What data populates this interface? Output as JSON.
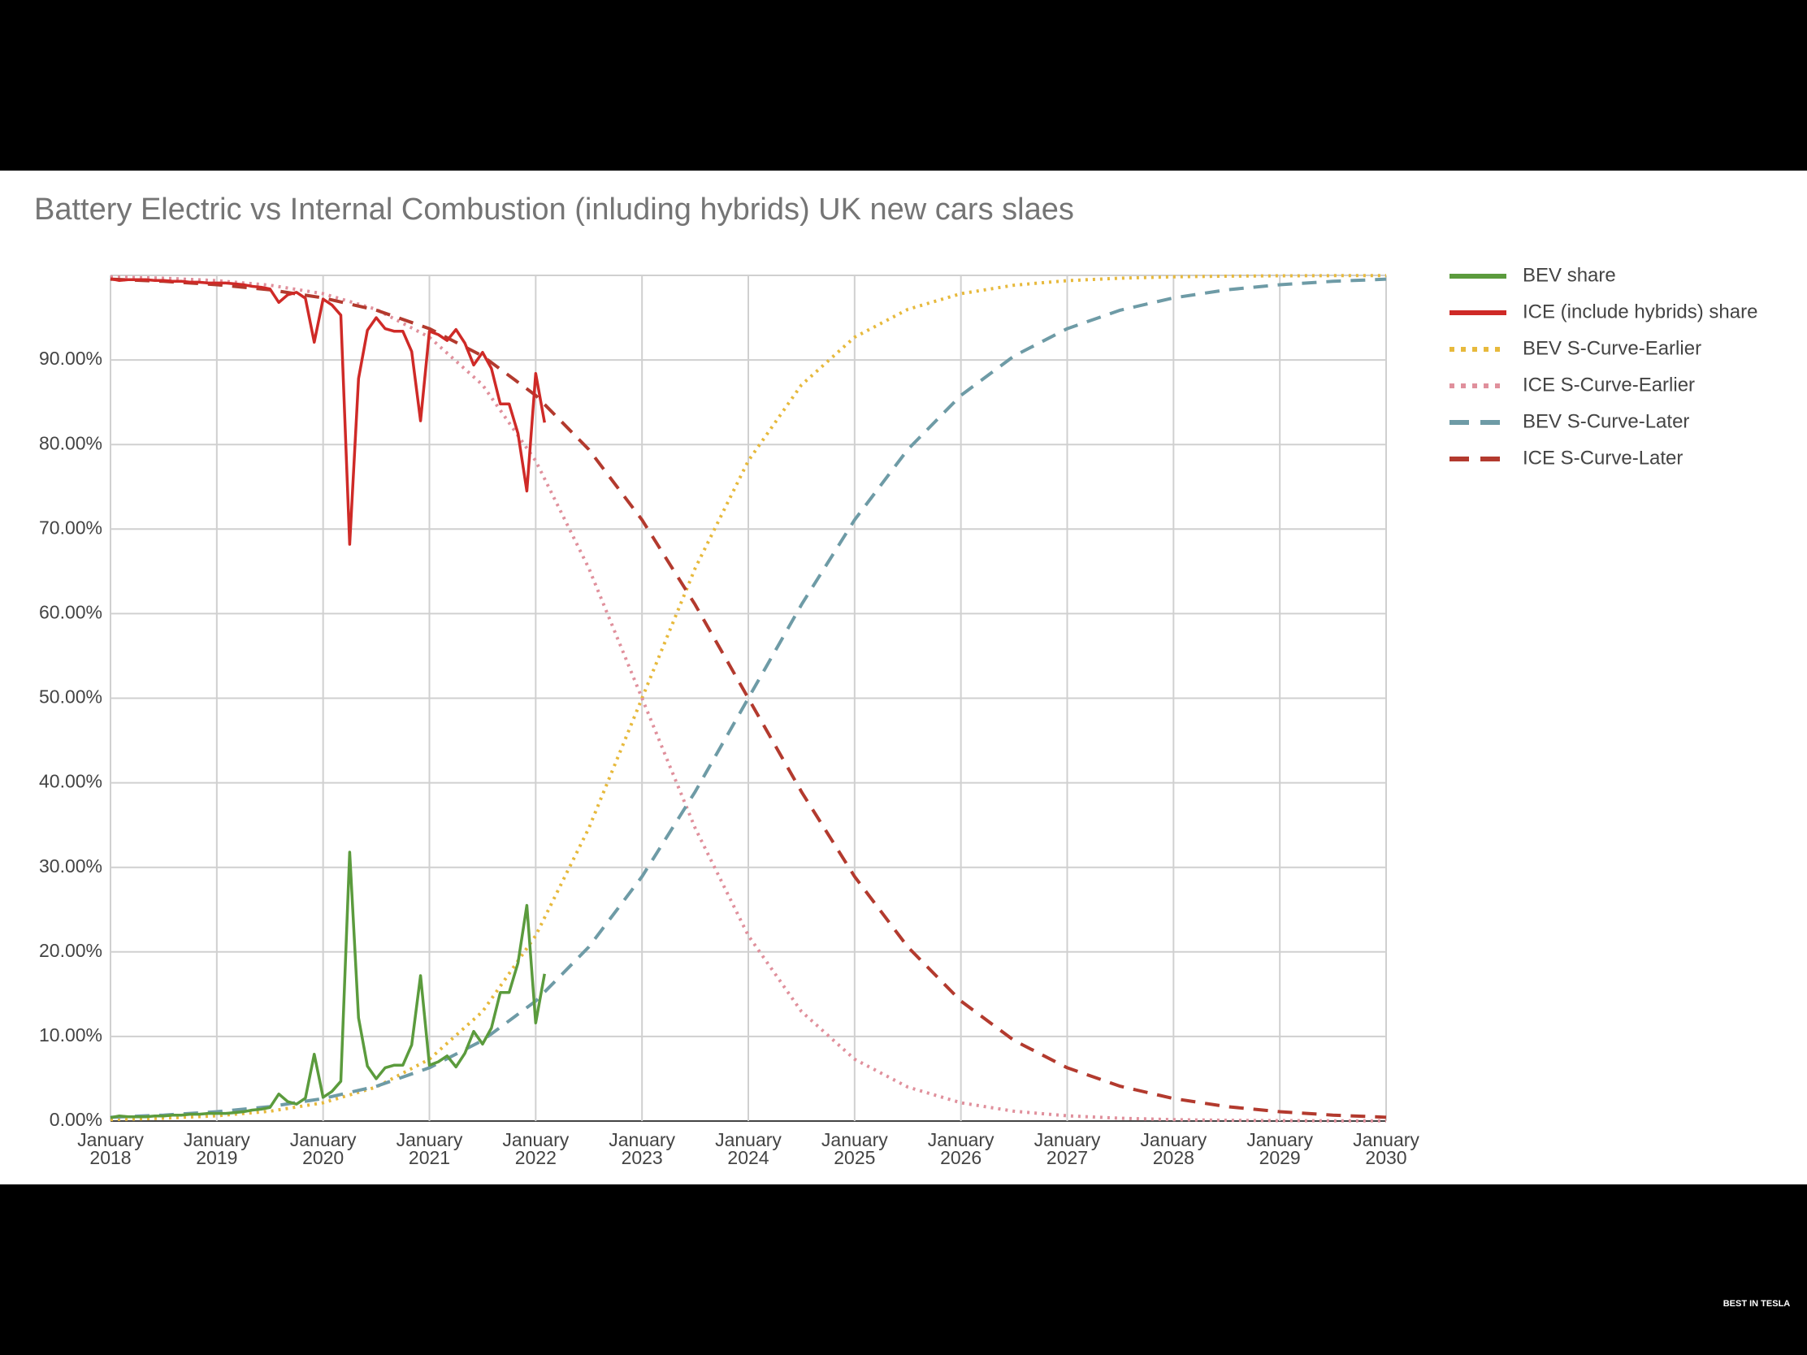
{
  "chart_data": {
    "type": "line",
    "title": "Battery Electric vs Internal Combustion (inluding hybrids) UK new cars slaes",
    "watermark": "BEST IN TESLA",
    "xlim": [
      "2018-01",
      "2030-01"
    ],
    "xticks": [
      {
        "value": "2018-01",
        "label": "January 2018"
      },
      {
        "value": "2019-01",
        "label": "January 2019"
      },
      {
        "value": "2020-01",
        "label": "January 2020"
      },
      {
        "value": "2021-01",
        "label": "January 2021"
      },
      {
        "value": "2022-01",
        "label": "January 2022"
      },
      {
        "value": "2023-01",
        "label": "January 2023"
      },
      {
        "value": "2024-01",
        "label": "January 2024"
      },
      {
        "value": "2025-01",
        "label": "January 2025"
      },
      {
        "value": "2026-01",
        "label": "January 2026"
      },
      {
        "value": "2027-01",
        "label": "January 2027"
      },
      {
        "value": "2028-01",
        "label": "January 2028"
      },
      {
        "value": "2029-01",
        "label": "January 2029"
      },
      {
        "value": "2030-01",
        "label": "January 2030"
      }
    ],
    "ylim": [
      0,
      100
    ],
    "yticks": [
      {
        "value": 0,
        "label": "0.00%"
      },
      {
        "value": 10,
        "label": "10.00%"
      },
      {
        "value": 20,
        "label": "20.00%"
      },
      {
        "value": 30,
        "label": "30.00%"
      },
      {
        "value": 40,
        "label": "40.00%"
      },
      {
        "value": 50,
        "label": "50.00%"
      },
      {
        "value": 60,
        "label": "60.00%"
      },
      {
        "value": 70,
        "label": "70.00%"
      },
      {
        "value": 80,
        "label": "80.00%"
      },
      {
        "value": 90,
        "label": "90.00%"
      }
    ],
    "grid": true,
    "legend": "right",
    "series": [
      {
        "name": "BEV share",
        "color": "#5b9b3d",
        "line_style": "solid",
        "x": [
          "2018-01",
          "2018-02",
          "2018-03",
          "2018-04",
          "2018-05",
          "2018-06",
          "2018-07",
          "2018-08",
          "2018-09",
          "2018-10",
          "2018-11",
          "2018-12",
          "2019-01",
          "2019-02",
          "2019-03",
          "2019-04",
          "2019-05",
          "2019-06",
          "2019-07",
          "2019-08",
          "2019-09",
          "2019-10",
          "2019-11",
          "2019-12",
          "2020-01",
          "2020-02",
          "2020-03",
          "2020-04",
          "2020-05",
          "2020-06",
          "2020-07",
          "2020-08",
          "2020-09",
          "2020-10",
          "2020-11",
          "2020-12",
          "2021-01",
          "2021-02",
          "2021-03",
          "2021-04",
          "2021-05",
          "2021-06",
          "2021-07",
          "2021-08",
          "2021-09",
          "2021-10",
          "2021-11",
          "2021-12",
          "2022-01",
          "2022-02"
        ],
        "values": [
          0.4,
          0.6,
          0.5,
          0.5,
          0.5,
          0.6,
          0.6,
          0.7,
          0.7,
          0.8,
          0.8,
          0.9,
          0.9,
          0.9,
          1.0,
          1.1,
          1.3,
          1.4,
          1.6,
          3.2,
          2.3,
          2.0,
          2.7,
          7.9,
          2.8,
          3.5,
          4.7,
          31.8,
          12.2,
          6.5,
          5.0,
          6.3,
          6.6,
          6.6,
          9.0,
          17.2,
          6.6,
          7.0,
          7.7,
          6.4,
          8.0,
          10.6,
          9.1,
          11.0,
          15.2,
          15.2,
          18.7,
          25.5,
          11.6,
          17.4
        ]
      },
      {
        "name": "ICE (include hybrids) share",
        "color": "#cf2a27",
        "line_style": "solid",
        "x": [
          "2018-01",
          "2018-02",
          "2018-03",
          "2018-04",
          "2018-05",
          "2018-06",
          "2018-07",
          "2018-08",
          "2018-09",
          "2018-10",
          "2018-11",
          "2018-12",
          "2019-01",
          "2019-02",
          "2019-03",
          "2019-04",
          "2019-05",
          "2019-06",
          "2019-07",
          "2019-08",
          "2019-09",
          "2019-10",
          "2019-11",
          "2019-12",
          "2020-01",
          "2020-02",
          "2020-03",
          "2020-04",
          "2020-05",
          "2020-06",
          "2020-07",
          "2020-08",
          "2020-09",
          "2020-10",
          "2020-11",
          "2020-12",
          "2021-01",
          "2021-02",
          "2021-03",
          "2021-04",
          "2021-05",
          "2021-06",
          "2021-07",
          "2021-08",
          "2021-09",
          "2021-10",
          "2021-11",
          "2021-12",
          "2022-01",
          "2022-02"
        ],
        "values": [
          99.6,
          99.4,
          99.5,
          99.5,
          99.5,
          99.4,
          99.4,
          99.3,
          99.3,
          99.2,
          99.2,
          99.1,
          99.1,
          99.1,
          99.0,
          98.9,
          98.7,
          98.6,
          98.4,
          96.8,
          97.7,
          98.0,
          97.3,
          92.1,
          97.2,
          96.5,
          95.3,
          68.2,
          87.8,
          93.5,
          95.0,
          93.7,
          93.4,
          93.4,
          91.0,
          82.8,
          93.4,
          93.0,
          92.3,
          93.6,
          92.0,
          89.4,
          90.9,
          89.0,
          84.8,
          84.8,
          81.3,
          74.5,
          88.4,
          82.6
        ]
      },
      {
        "name": "BEV S-Curve-Earlier",
        "color": "#e7b93c",
        "line_style": "dotted",
        "x": [
          "2018-01",
          "2018-07",
          "2019-01",
          "2019-07",
          "2020-01",
          "2020-07",
          "2021-01",
          "2021-07",
          "2022-01",
          "2022-07",
          "2023-01",
          "2023-07",
          "2024-01",
          "2024-07",
          "2025-01",
          "2025-07",
          "2026-01",
          "2026-07",
          "2027-01",
          "2027-07",
          "2028-01",
          "2028-07",
          "2029-01",
          "2029-07",
          "2030-01"
        ],
        "values": [
          0.17,
          0.33,
          0.62,
          1.16,
          2.16,
          4.02,
          7.31,
          12.95,
          21.93,
          34.64,
          50,
          65.36,
          78.07,
          87.05,
          92.69,
          95.98,
          97.84,
          98.84,
          99.38,
          99.67,
          99.83,
          99.91,
          99.95,
          99.97,
          99.98
        ]
      },
      {
        "name": "ICE S-Curve-Earlier",
        "color": "#e0909c",
        "line_style": "dotted",
        "x": [
          "2018-01",
          "2018-07",
          "2019-01",
          "2019-07",
          "2020-01",
          "2020-07",
          "2021-01",
          "2021-07",
          "2022-01",
          "2022-07",
          "2023-01",
          "2023-07",
          "2024-01",
          "2024-07",
          "2025-01",
          "2025-07",
          "2026-01",
          "2026-07",
          "2027-01",
          "2027-07",
          "2028-01",
          "2028-07",
          "2029-01",
          "2029-07",
          "2030-01"
        ],
        "values": [
          99.83,
          99.67,
          99.38,
          98.84,
          97.84,
          95.98,
          92.69,
          87.05,
          78.07,
          65.36,
          50,
          34.64,
          21.93,
          12.95,
          7.31,
          4.02,
          2.16,
          1.16,
          0.62,
          0.33,
          0.17,
          0.09,
          0.05,
          0.03,
          0.02
        ]
      },
      {
        "name": "BEV S-Curve-Later",
        "color": "#6e9ba6",
        "line_style": "dashed",
        "x": [
          "2018-01",
          "2018-07",
          "2019-01",
          "2019-07",
          "2020-01",
          "2020-07",
          "2021-01",
          "2021-07",
          "2022-01",
          "2022-07",
          "2023-01",
          "2023-07",
          "2024-01",
          "2024-07",
          "2025-01",
          "2025-07",
          "2026-01",
          "2026-07",
          "2027-01",
          "2027-07",
          "2028-01",
          "2028-07",
          "2029-01",
          "2029-07",
          "2030-01"
        ],
        "values": [
          0.45,
          0.7,
          1.1,
          1.71,
          2.66,
          4.11,
          6.3,
          9.53,
          14.19,
          20.59,
          28.91,
          38.94,
          50,
          61.06,
          71.09,
          79.41,
          85.81,
          90.47,
          93.7,
          95.89,
          97.34,
          98.29,
          98.9,
          99.3,
          99.55
        ]
      },
      {
        "name": "ICE S-Curve-Later",
        "color": "#b33a2e",
        "line_style": "dashed",
        "x": [
          "2018-01",
          "2018-07",
          "2019-01",
          "2019-07",
          "2020-01",
          "2020-07",
          "2021-01",
          "2021-07",
          "2022-01",
          "2022-07",
          "2023-01",
          "2023-07",
          "2024-01",
          "2024-07",
          "2025-01",
          "2025-07",
          "2026-01",
          "2026-07",
          "2027-01",
          "2027-07",
          "2028-01",
          "2028-07",
          "2029-01",
          "2029-07",
          "2030-01"
        ],
        "values": [
          99.55,
          99.3,
          98.9,
          98.29,
          97.34,
          95.89,
          93.7,
          90.47,
          85.81,
          79.41,
          71.09,
          61.06,
          50,
          38.94,
          28.91,
          20.59,
          14.19,
          9.53,
          6.3,
          4.11,
          2.66,
          1.71,
          1.1,
          0.7,
          0.45
        ]
      }
    ]
  }
}
